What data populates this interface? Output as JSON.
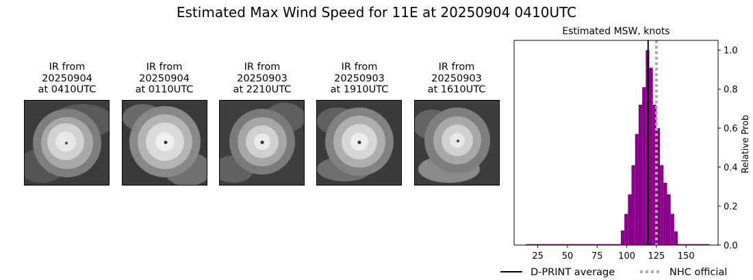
{
  "page": {
    "title": "Estimated Max Wind Speed for 11E at 20250904 0410UTC"
  },
  "thumbnails": [
    {
      "line1": "IR from",
      "line2": "20250904",
      "line3": "at 0410UTC"
    },
    {
      "line1": "IR from",
      "line2": "20250904",
      "line3": "at 0110UTC"
    },
    {
      "line1": "IR from",
      "line2": "20250903",
      "line3": "at 2210UTC"
    },
    {
      "line1": "IR from",
      "line2": "20250903",
      "line3": "at 1910UTC"
    },
    {
      "line1": "IR from",
      "line2": "20250903",
      "line3": "at 1610UTC"
    }
  ],
  "chart_data": {
    "type": "bar",
    "title": "Estimated MSW, knots",
    "xlabel": "",
    "ylabel": "Relative Prob",
    "xlim": [
      5,
      177
    ],
    "ylim": [
      0,
      1.05
    ],
    "xticks": [
      25,
      50,
      75,
      100,
      125,
      150
    ],
    "yticks": [
      0.0,
      0.2,
      0.4,
      0.6,
      0.8,
      1.0
    ],
    "y_axis_side": "right",
    "bar_color": "#8b008b",
    "bins": [
      {
        "x0": 15,
        "x1": 95,
        "value": 0.005
      },
      {
        "x0": 95,
        "x1": 98,
        "value": 0.075
      },
      {
        "x0": 98,
        "x1": 101,
        "value": 0.16
      },
      {
        "x0": 101,
        "x1": 104,
        "value": 0.26
      },
      {
        "x0": 104,
        "x1": 107,
        "value": 0.41
      },
      {
        "x0": 107,
        "x1": 110,
        "value": 0.57
      },
      {
        "x0": 110,
        "x1": 113,
        "value": 0.72
      },
      {
        "x0": 113,
        "x1": 116,
        "value": 0.81
      },
      {
        "x0": 116,
        "x1": 119,
        "value": 1.0
      },
      {
        "x0": 119,
        "x1": 122,
        "value": 0.91
      },
      {
        "x0": 122,
        "x1": 125,
        "value": 0.72
      },
      {
        "x0": 125,
        "x1": 128,
        "value": 0.6
      },
      {
        "x0": 128,
        "x1": 131,
        "value": 0.41
      },
      {
        "x0": 131,
        "x1": 134,
        "value": 0.32
      },
      {
        "x0": 134,
        "x1": 137,
        "value": 0.26
      },
      {
        "x0": 137,
        "x1": 140,
        "value": 0.16
      },
      {
        "x0": 140,
        "x1": 143,
        "value": 0.07
      },
      {
        "x0": 143,
        "x1": 170,
        "value": 0.005
      }
    ],
    "dprint_average": 118,
    "nhc_official": 125,
    "legend": [
      {
        "label": "D-PRINT average",
        "style": "solid",
        "color": "#000000"
      },
      {
        "label": "NHC official",
        "style": "dotted",
        "color": "#aaaaaa"
      }
    ],
    "legend_placement": "bottom"
  }
}
